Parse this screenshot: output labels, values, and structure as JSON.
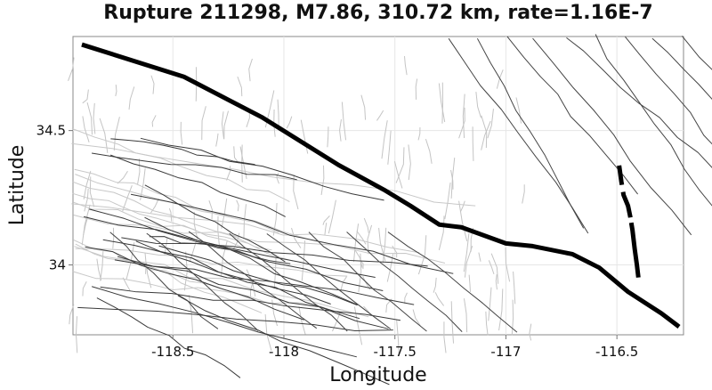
{
  "chart_data": {
    "type": "map",
    "title": "Rupture 211298, M7.86, 310.72 km, rate=1.16E-7",
    "xlabel": "Longitude",
    "ylabel": "Latitude",
    "xlim": [
      -118.95,
      -116.2
    ],
    "ylim": [
      33.74,
      34.85
    ],
    "x_ticks": [
      -118.5,
      -118,
      -117.5,
      -117,
      -116.5
    ],
    "x_tick_labels": [
      "-118.5",
      "-118",
      "-117.5",
      "-117",
      "-116.5"
    ],
    "y_ticks": [
      34,
      34.5
    ],
    "y_tick_labels": [
      "34",
      "34.5"
    ],
    "grid": true,
    "rupture_trace": [
      [
        -118.91,
        34.82
      ],
      [
        -118.45,
        34.7
      ],
      [
        -118.1,
        34.55
      ],
      [
        -117.75,
        34.37
      ],
      [
        -117.55,
        34.28
      ],
      [
        -117.43,
        34.22
      ],
      [
        -117.3,
        34.15
      ],
      [
        -117.2,
        34.14
      ],
      [
        -117.0,
        34.08
      ],
      [
        -116.88,
        34.07
      ],
      [
        -116.7,
        34.04
      ],
      [
        -116.58,
        33.99
      ],
      [
        -116.45,
        33.9
      ],
      [
        -116.3,
        33.82
      ],
      [
        -116.22,
        33.77
      ]
    ],
    "rupture_segment_2": [
      [
        -116.49,
        34.37
      ],
      [
        -116.48,
        34.31
      ],
      [
        -116.47,
        34.26
      ],
      [
        -116.45,
        34.22
      ],
      [
        -116.44,
        34.18
      ],
      [
        -116.43,
        34.13
      ],
      [
        -116.42,
        34.06
      ],
      [
        -116.41,
        34.0
      ],
      [
        -116.4,
        33.93
      ]
    ]
  }
}
